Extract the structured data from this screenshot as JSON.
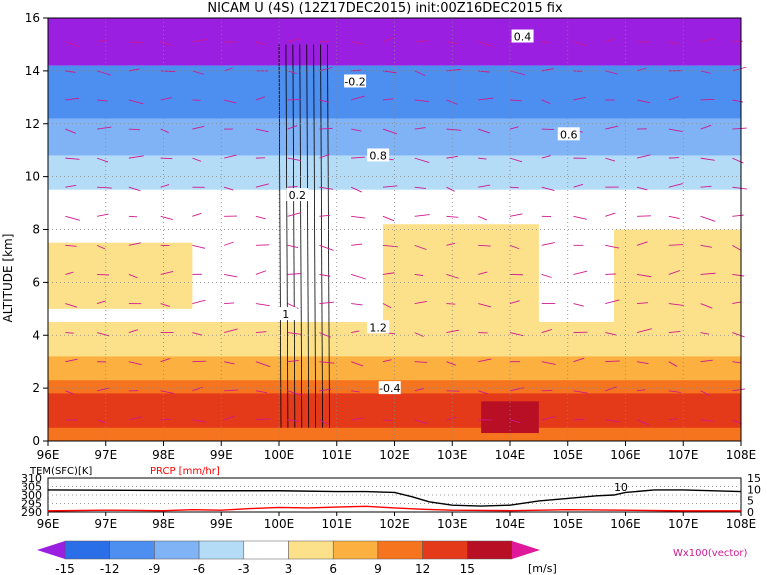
{
  "chart_data": [
    {
      "type": "heatmap",
      "title": "NICAM U (4S) (12Z17DEC2015) init:00Z16DEC2015 fix",
      "ylabel": "ALTITUDE [km]",
      "xlim": [
        96,
        108
      ],
      "ylim": [
        0,
        16
      ],
      "x_ticks": [
        "96E",
        "97E",
        "98E",
        "99E",
        "100E",
        "101E",
        "102E",
        "103E",
        "104E",
        "105E",
        "106E",
        "107E",
        "108E"
      ],
      "y_ticks": [
        "0",
        "2",
        "4",
        "6",
        "8",
        "10",
        "12",
        "14",
        "16"
      ],
      "grid": true,
      "colorbar": {
        "levels": [
          "-15",
          "-12",
          "-9",
          "-6",
          "-3",
          "3",
          "6",
          "9",
          "12",
          "15"
        ],
        "unit": "[m/s]",
        "colors": [
          "#9a1fe0",
          "#2b6fe8",
          "#4d8ff0",
          "#7fb3f5",
          "#b5dcf7",
          "#ffffff",
          "#fde08a",
          "#fbb040",
          "#f7741f",
          "#e43a1a",
          "#b80f25",
          "#e0189a"
        ]
      },
      "vector_label": "Wx100(vector)",
      "contour_labels": [
        "0.2",
        "-0.2",
        "0.4",
        "0.6",
        "0.8",
        "1",
        "1.2",
        "-0.4"
      ],
      "regions": [
        {
          "x": [
            96,
            108
          ],
          "y": [
            14.2,
            16
          ],
          "value": -15
        },
        {
          "x": [
            96,
            108
          ],
          "y": [
            12.2,
            14.2
          ],
          "value": -10
        },
        {
          "x": [
            96,
            108
          ],
          "y": [
            10.8,
            12.2
          ],
          "value": -6
        },
        {
          "x": [
            96,
            108
          ],
          "y": [
            9.5,
            10.8
          ],
          "value": -3
        },
        {
          "x": [
            96,
            108
          ],
          "y": [
            0,
            9.5
          ],
          "value": 0
        },
        {
          "x": [
            96,
            108
          ],
          "y": [
            0,
            4.5
          ],
          "value": 4
        },
        {
          "x": [
            96,
            108
          ],
          "y": [
            0,
            3.2
          ],
          "value": 7
        },
        {
          "x": [
            96,
            108
          ],
          "y": [
            0,
            2.3
          ],
          "value": 10
        },
        {
          "x": [
            96,
            108
          ],
          "y": [
            0.5,
            1.8
          ],
          "value": 13
        },
        {
          "x": [
            101.8,
            104.5
          ],
          "y": [
            3.2,
            8.2
          ],
          "value": 5
        },
        {
          "x": [
            105.8,
            108
          ],
          "y": [
            3.5,
            8
          ],
          "value": 6
        },
        {
          "x": [
            96,
            98.5
          ],
          "y": [
            5,
            7.5
          ],
          "value": 4
        },
        {
          "x": [
            103.5,
            104.5
          ],
          "y": [
            0.3,
            1.5
          ],
          "value": 16
        }
      ]
    },
    {
      "type": "line",
      "xlim": [
        96,
        108
      ],
      "left_label": "TEM(SFC)[K]",
      "right_label": "PRCP [mm/hr]",
      "left_ticks": [
        "290",
        "295",
        "300",
        "305",
        "310"
      ],
      "right_ticks": [
        "0",
        "5",
        "10",
        "15"
      ],
      "annotation": "10",
      "series": [
        {
          "name": "TEM(SFC)[K]",
          "color": "#000000",
          "x": [
            96,
            99,
            100,
            101,
            101.5,
            102,
            102.3,
            102.6,
            103,
            103.5,
            104,
            104.5,
            105,
            105.5,
            105.8,
            106,
            106.5,
            107,
            108
          ],
          "y": [
            303,
            302.5,
            302.5,
            302,
            302,
            301.5,
            299,
            296,
            294,
            293.5,
            294,
            296.5,
            298,
            299.5,
            300,
            301.5,
            303,
            303,
            302
          ]
        },
        {
          "name": "PRCP [mm/hr]",
          "color": "#ff0000",
          "x": [
            96,
            97,
            98,
            98.5,
            99,
            99.5,
            100,
            100.5,
            101,
            101.5,
            102,
            102.5,
            103,
            104,
            105,
            106,
            107,
            108
          ],
          "y": [
            0.5,
            0.8,
            0.6,
            1.0,
            0.8,
            1.5,
            2.0,
            1.8,
            2.2,
            2.5,
            1.8,
            1.2,
            0.8,
            0.6,
            1.0,
            0.8,
            0.5,
            0.5
          ]
        }
      ]
    }
  ]
}
